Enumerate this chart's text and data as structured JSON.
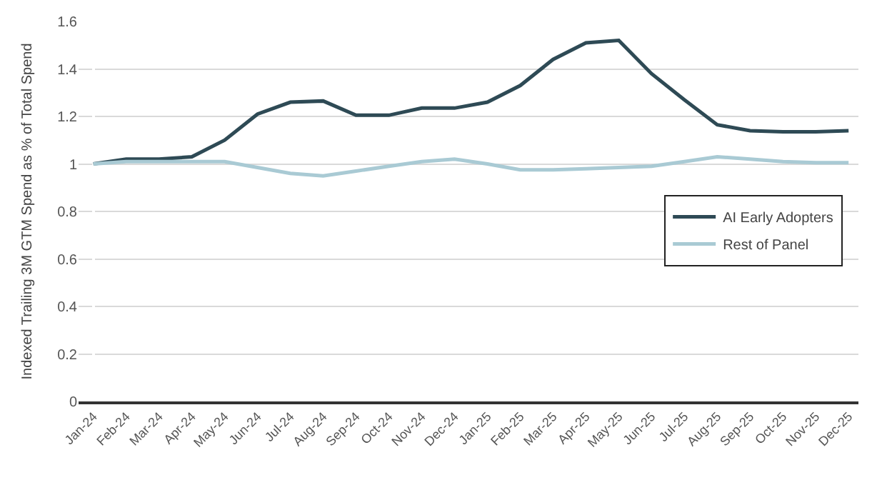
{
  "chart_data": {
    "type": "line",
    "ylabel": "Indexed Trailing 3M GTM Spend as % of Total Spend",
    "categories": [
      "Jan-24",
      "Feb-24",
      "Mar-24",
      "Apr-24",
      "May-24",
      "Jun-24",
      "Jul-24",
      "Aug-24",
      "Sep-24",
      "Oct-24",
      "Nov-24",
      "Dec-24",
      "Jan-25",
      "Feb-25",
      "Mar-25",
      "Apr-25",
      "May-25",
      "Jun-25",
      "Jul-25",
      "Aug-25",
      "Sep-25",
      "Oct-25",
      "Nov-25",
      "Dec-25"
    ],
    "series": [
      {
        "name": "AI Early Adopters",
        "color": "#2e4a55",
        "values": [
          1.0,
          1.02,
          1.02,
          1.03,
          1.1,
          1.21,
          1.26,
          1.265,
          1.205,
          1.205,
          1.235,
          1.235,
          1.26,
          1.33,
          1.44,
          1.51,
          1.52,
          1.38,
          1.27,
          1.165,
          1.14,
          1.135,
          1.135,
          1.14
        ]
      },
      {
        "name": "Rest of Panel",
        "color": "#a9cad4",
        "values": [
          1.0,
          1.01,
          1.01,
          1.01,
          1.01,
          0.985,
          0.96,
          0.95,
          0.97,
          0.99,
          1.01,
          1.02,
          1.0,
          0.975,
          0.975,
          0.98,
          0.985,
          0.99,
          1.01,
          1.03,
          1.02,
          1.01,
          1.005,
          1.005
        ]
      }
    ],
    "ylim": [
      0,
      1.6
    ],
    "yticks": [
      0,
      {
        "value": 0.2,
        "label": "0.2"
      },
      {
        "value": 0.4,
        "label": "0.4"
      },
      {
        "value": 0.6,
        "label": "0.6"
      },
      {
        "value": 0.8,
        "label": "0.8"
      },
      1,
      {
        "value": 1.2,
        "label": "1.2"
      },
      {
        "value": 1.4,
        "label": "1.4"
      },
      {
        "value": 1.6,
        "label": "1.6"
      }
    ],
    "grid": "y",
    "legend": "right",
    "marker": "none",
    "line_style": "solid"
  }
}
